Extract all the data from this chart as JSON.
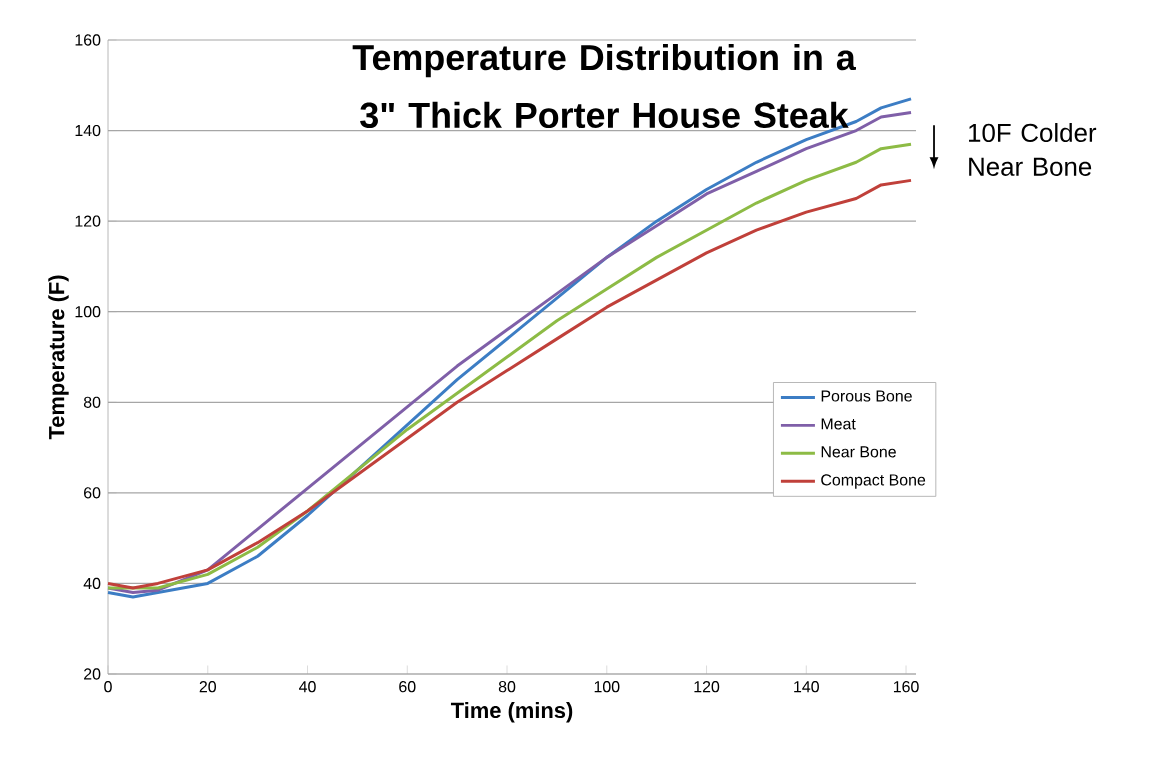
{
  "chart_data": {
    "type": "line",
    "title": "Temperature Distribution in a 3\" Thick Porter House Steak",
    "xlabel": "Time (mins)",
    "ylabel": "Temperature (F)",
    "x": [
      0,
      5,
      10,
      20,
      30,
      40,
      50,
      60,
      70,
      80,
      90,
      100,
      110,
      120,
      130,
      140,
      150,
      155,
      161
    ],
    "series": [
      {
        "name": "Porous Bone",
        "color": "#3c7dc4",
        "values": [
          38,
          37,
          38,
          40,
          46,
          55,
          65,
          75,
          85,
          94,
          103,
          112,
          120,
          127,
          133,
          138,
          142,
          145,
          147
        ]
      },
      {
        "name": "Meat",
        "color": "#7f5fa8",
        "values": [
          39,
          38,
          38.5,
          43,
          52,
          61,
          70,
          79,
          88,
          96,
          104,
          112,
          119,
          126,
          131,
          136,
          140,
          143,
          144
        ]
      },
      {
        "name": "Near Bone",
        "color": "#8dbb45",
        "values": [
          39,
          39,
          39,
          42,
          48,
          56,
          65,
          74,
          82,
          90,
          98,
          105,
          112,
          118,
          124,
          129,
          133,
          136,
          137
        ]
      },
      {
        "name": "Compact Bone",
        "color": "#c0403a",
        "values": [
          40,
          39,
          40,
          43,
          49,
          56,
          64,
          72,
          80,
          87,
          94,
          101,
          107,
          113,
          118,
          122,
          125,
          128,
          129
        ]
      }
    ],
    "xlim": [
      0,
      162
    ],
    "ylim": [
      20,
      160
    ],
    "xticks": [
      0,
      20,
      40,
      60,
      80,
      100,
      120,
      140,
      160
    ],
    "yticks": [
      20,
      40,
      60,
      80,
      100,
      120,
      140,
      160
    ],
    "grid": "y",
    "legend": "right",
    "annotations": [
      "10F Colder Near Bone"
    ]
  }
}
